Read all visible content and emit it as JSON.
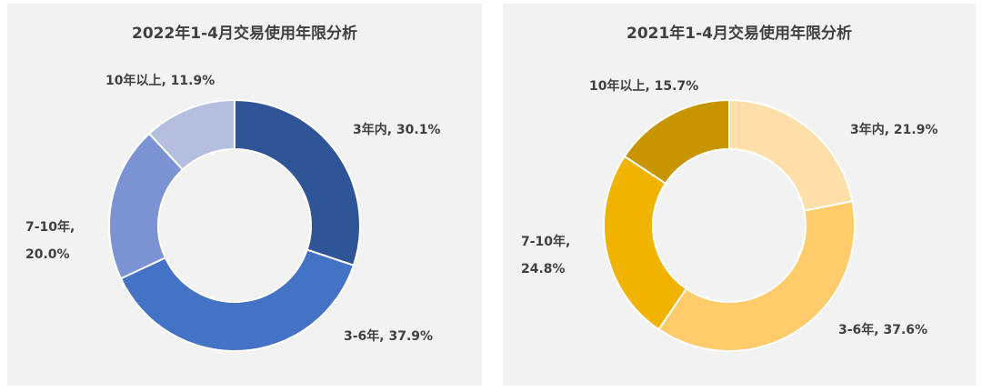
{
  "chart_data": [
    {
      "type": "pie",
      "title": "2022年1-4月交易使用年限分析",
      "categories": [
        "3年内",
        "3-6年",
        "7-10年",
        "10年以上"
      ],
      "values": [
        30.1,
        37.9,
        20.0,
        11.9
      ],
      "labels": [
        "3年内, 30.1%",
        "3-6年, 37.9%",
        "7-10年,",
        "20.0%",
        "10年以上, 11.9%"
      ],
      "colors": [
        "#2f5597",
        "#4472c4",
        "#7b93d3",
        "#b4bfe0"
      ]
    },
    {
      "type": "pie",
      "title": "2021年1-4月交易使用年限分析",
      "categories": [
        "3年内",
        "3-6年",
        "7-10年",
        "10年以上"
      ],
      "values": [
        21.9,
        37.6,
        24.8,
        15.7
      ],
      "labels": [
        "3年内, 21.9%",
        "3-6年, 37.6%",
        "7-10年,",
        "24.8%",
        "10年以上, 15.7%"
      ],
      "colors": [
        "#ffdfa9",
        "#ffcb6b",
        "#f0b400",
        "#c69500"
      ]
    }
  ]
}
